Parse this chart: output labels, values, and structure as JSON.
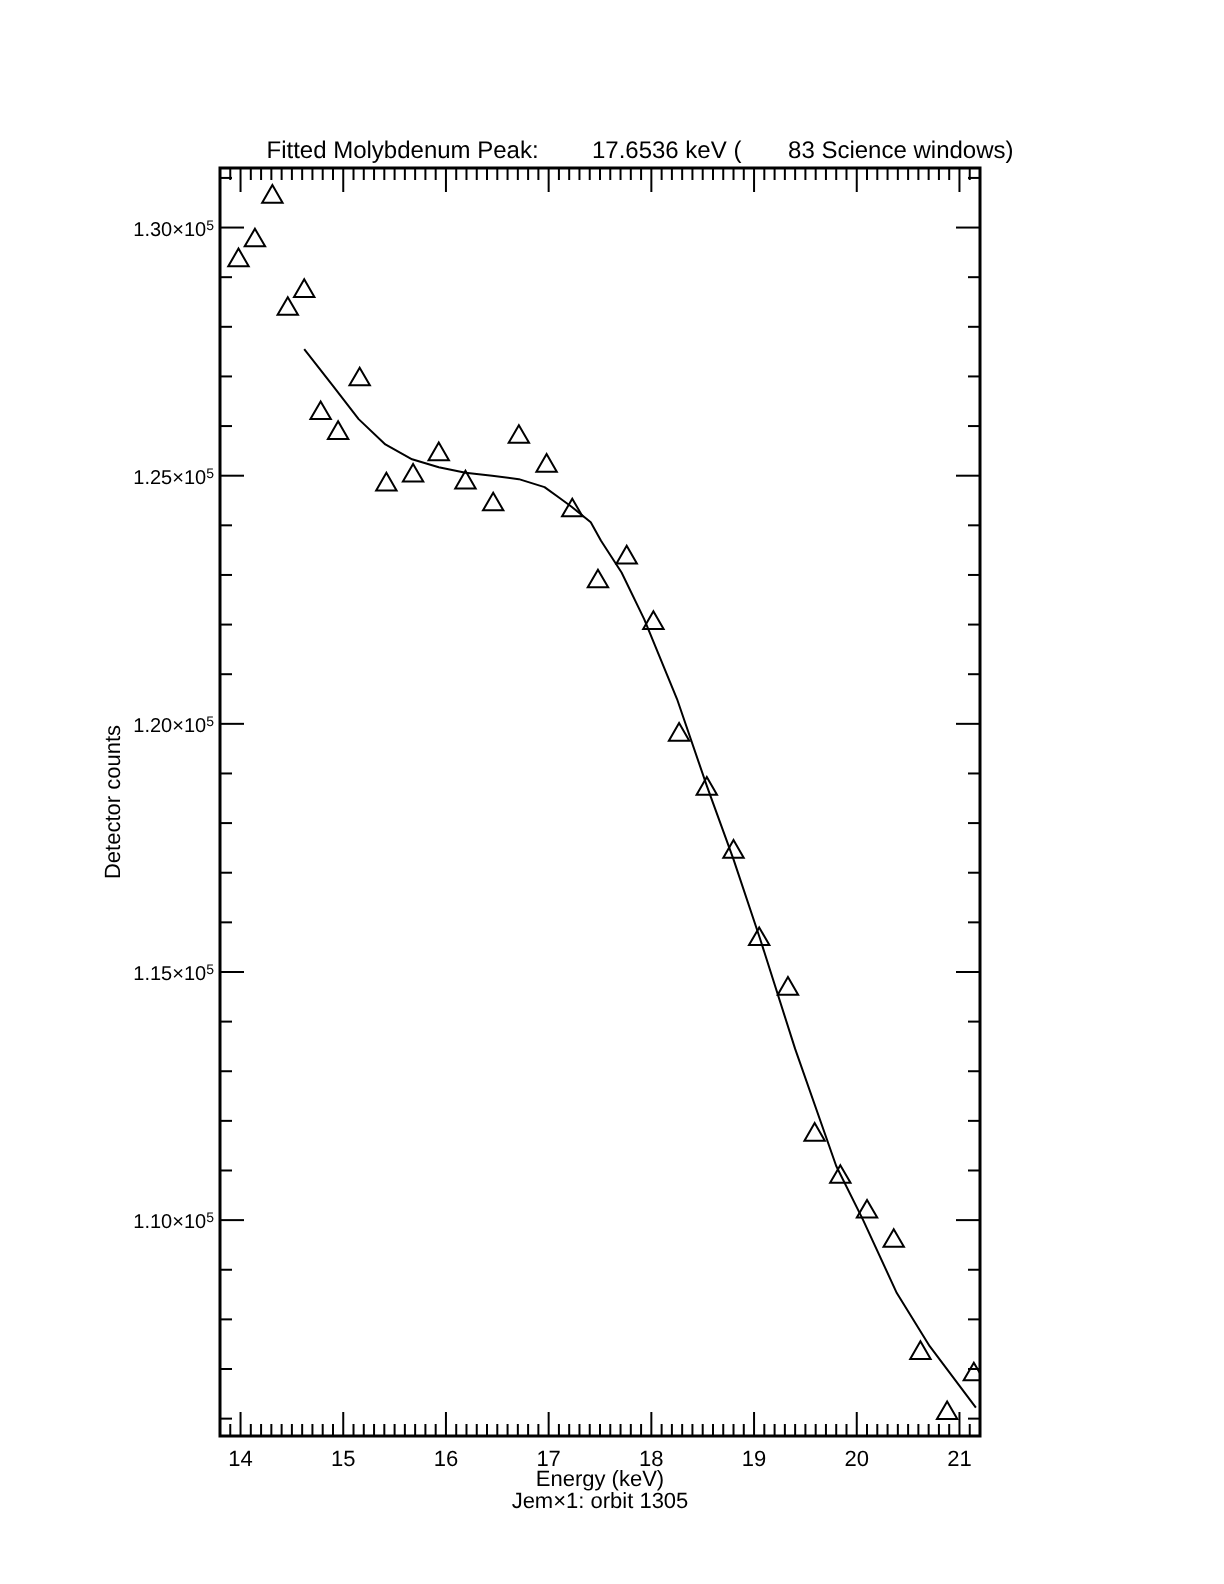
{
  "chart_data": {
    "type": "scatter",
    "title": "Fitted Molybdenum Peak:        17.6536 keV (       83 Science windows)",
    "xlabel": "Energy (keV)",
    "ylabel": "Detector counts",
    "annotations": [
      "Jem×1: orbit 1305"
    ],
    "xlim": [
      13.8,
      21.2
    ],
    "xticks": [
      {
        "value": 13.9,
        "label": null
      },
      14,
      {
        "value": 14.1,
        "label": null
      },
      {
        "value": 14.2,
        "label": null
      },
      {
        "value": 14.3,
        "label": null
      },
      {
        "value": 14.4,
        "label": null
      },
      {
        "value": 14.5,
        "label": null
      },
      {
        "value": 14.6,
        "label": null
      },
      {
        "value": 14.7,
        "label": null
      },
      {
        "value": 14.8,
        "label": null
      },
      {
        "value": 14.9,
        "label": null
      },
      15,
      {
        "value": 15.1,
        "label": null
      },
      {
        "value": 15.2,
        "label": null
      },
      {
        "value": 15.3,
        "label": null
      },
      {
        "value": 15.4,
        "label": null
      },
      {
        "value": 15.5,
        "label": null
      },
      {
        "value": 15.6,
        "label": null
      },
      {
        "value": 15.7,
        "label": null
      },
      {
        "value": 15.8,
        "label": null
      },
      {
        "value": 15.9,
        "label": null
      },
      16,
      {
        "value": 16.1,
        "label": null
      },
      {
        "value": 16.2,
        "label": null
      },
      {
        "value": 16.3,
        "label": null
      },
      {
        "value": 16.4,
        "label": null
      },
      {
        "value": 16.5,
        "label": null
      },
      {
        "value": 16.6,
        "label": null
      },
      {
        "value": 16.7,
        "label": null
      },
      {
        "value": 16.8,
        "label": null
      },
      {
        "value": 16.9,
        "label": null
      },
      17,
      {
        "value": 17.1,
        "label": null
      },
      {
        "value": 17.2,
        "label": null
      },
      {
        "value": 17.3,
        "label": null
      },
      {
        "value": 17.4,
        "label": null
      },
      {
        "value": 17.5,
        "label": null
      },
      {
        "value": 17.6,
        "label": null
      },
      {
        "value": 17.7,
        "label": null
      },
      {
        "value": 17.8,
        "label": null
      },
      {
        "value": 17.9,
        "label": null
      },
      18,
      {
        "value": 18.1,
        "label": null
      },
      {
        "value": 18.2,
        "label": null
      },
      {
        "value": 18.3,
        "label": null
      },
      {
        "value": 18.4,
        "label": null
      },
      {
        "value": 18.5,
        "label": null
      },
      {
        "value": 18.6,
        "label": null
      },
      {
        "value": 18.7,
        "label": null
      },
      {
        "value": 18.8,
        "label": null
      },
      {
        "value": 18.9,
        "label": null
      },
      19,
      {
        "value": 19.1,
        "label": null
      },
      {
        "value": 19.2,
        "label": null
      },
      {
        "value": 19.3,
        "label": null
      },
      {
        "value": 19.4,
        "label": null
      },
      {
        "value": 19.5,
        "label": null
      },
      {
        "value": 19.6,
        "label": null
      },
      {
        "value": 19.7,
        "label": null
      },
      {
        "value": 19.8,
        "label": null
      },
      {
        "value": 19.9,
        "label": null
      },
      20,
      {
        "value": 20.1,
        "label": null
      },
      {
        "value": 20.2,
        "label": null
      },
      {
        "value": 20.3,
        "label": null
      },
      {
        "value": 20.4,
        "label": null
      },
      {
        "value": 20.5,
        "label": null
      },
      {
        "value": 20.6,
        "label": null
      },
      {
        "value": 20.7,
        "label": null
      },
      {
        "value": 20.8,
        "label": null
      },
      {
        "value": 20.9,
        "label": null
      },
      21,
      {
        "value": 21.1,
        "label": null
      }
    ],
    "ylim": [
      105650,
      131200
    ],
    "yticks": [
      {
        "value": 106000,
        "label": null
      },
      {
        "value": 107000,
        "label": null
      },
      {
        "value": 108000,
        "label": null
      },
      {
        "value": 109000,
        "label": null
      },
      {
        "value": 110000,
        "label": "1.10×10$^{5}$"
      },
      {
        "value": 111000,
        "label": null
      },
      {
        "value": 112000,
        "label": null
      },
      {
        "value": 113000,
        "label": null
      },
      {
        "value": 114000,
        "label": null
      },
      {
        "value": 115000,
        "label": "1.15×10$^{5}$"
      },
      {
        "value": 116000,
        "label": null
      },
      {
        "value": 117000,
        "label": null
      },
      {
        "value": 118000,
        "label": null
      },
      {
        "value": 119000,
        "label": null
      },
      {
        "value": 120000,
        "label": "1.20×10$^{5}$"
      },
      {
        "value": 121000,
        "label": null
      },
      {
        "value": 122000,
        "label": null
      },
      {
        "value": 123000,
        "label": null
      },
      {
        "value": 124000,
        "label": null
      },
      {
        "value": 125000,
        "label": "1.25×10$^{5}$"
      },
      {
        "value": 126000,
        "label": null
      },
      {
        "value": 127000,
        "label": null
      },
      {
        "value": 128000,
        "label": null
      },
      {
        "value": 129000,
        "label": null
      },
      {
        "value": 130000,
        "label": "1.30×10$^{5}$"
      },
      {
        "value": 131000,
        "label": null
      }
    ],
    "grid": false,
    "series": [
      {
        "color": "#000000",
        "marker": "triangle",
        "x": [
          13.98,
          14.14,
          14.31,
          14.46,
          14.62,
          14.78,
          14.95,
          15.16,
          15.42,
          15.68,
          15.93,
          16.19,
          16.46,
          16.71,
          16.98,
          17.23,
          17.48,
          17.76,
          18.02,
          18.27,
          18.54,
          18.8,
          19.05,
          19.33,
          19.59,
          19.84,
          20.1,
          20.36,
          20.62,
          20.88,
          21.14
        ],
        "values": [
          129340,
          129740,
          130620,
          128360,
          128720,
          126260,
          125860,
          126940,
          124820,
          125000,
          125430,
          124860,
          124420,
          125780,
          125200,
          124300,
          122870,
          123350,
          122030,
          119780,
          118690,
          117420,
          115660,
          114660,
          111720,
          110870,
          110170,
          109580,
          107320,
          106110,
          106890
        ]
      },
      {
        "type": "line",
        "color": "#000000",
        "marker": "none",
        "x": [
          14.62,
          14.9,
          15.15,
          15.41,
          15.67,
          15.93,
          16.19,
          16.45,
          16.71,
          16.96,
          17.1,
          17.22,
          17.41,
          17.51,
          17.71,
          17.93,
          18.25,
          18.54,
          18.8,
          19.06,
          19.4,
          19.8,
          20.06,
          20.39,
          20.71,
          21.16
        ],
        "values": [
          127550,
          126810,
          126140,
          125630,
          125330,
          125170,
          125060,
          125000,
          124930,
          124770,
          124560,
          124380,
          124060,
          123690,
          123050,
          122110,
          120500,
          118750,
          117270,
          115660,
          113450,
          111090,
          110010,
          108530,
          107460,
          106220
        ]
      }
    ]
  }
}
